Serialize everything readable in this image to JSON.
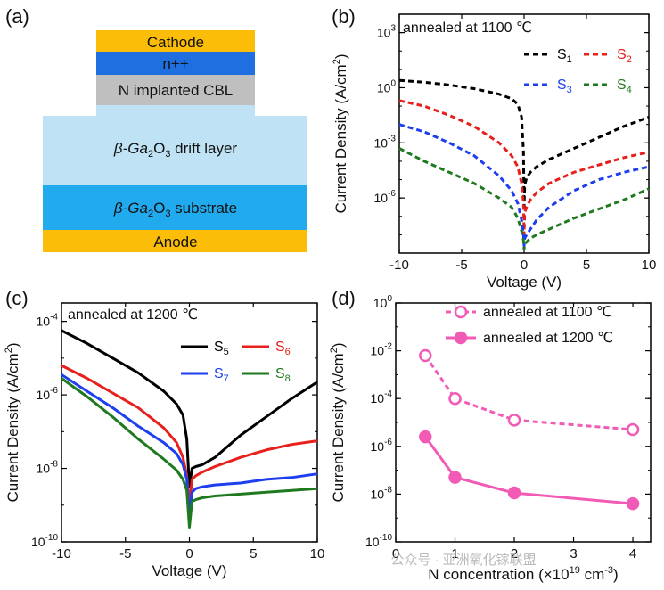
{
  "figure": {
    "panel_labels": [
      "(a)",
      "(b)",
      "(c)",
      "(d)"
    ],
    "watermark": "公众号 · 亚洲氧化镓联盟"
  },
  "device": {
    "layers": [
      {
        "label": "Cathode",
        "color": "#fbbd08"
      },
      {
        "label": "n++",
        "color": "#1f6fe0"
      },
      {
        "label": "N implanted CBL",
        "color": "#bfbfbf"
      },
      {
        "label_prefix": "β-Ga",
        "sub1": "2",
        "mid": "O",
        "sub2": "3",
        "label_suffix": " drift layer",
        "color": "#bfe3f4"
      },
      {
        "label_prefix": "β-Ga",
        "sub1": "2",
        "mid": "O",
        "sub2": "3",
        "label_suffix": " substrate",
        "color": "#22aaee"
      },
      {
        "label": "Anode",
        "color": "#fbbd08"
      }
    ]
  },
  "chart_data": [
    {
      "panel": "(b)",
      "type": "line",
      "title": "annealed at 1100 ℃",
      "xlabel": "Voltage (V)",
      "ylabel": "Current Density (A/cm²)",
      "xlim": [
        -10,
        10
      ],
      "ylim_log10": [
        -9,
        4
      ],
      "xticks": [
        -10,
        -5,
        0,
        5,
        10
      ],
      "yticks": [
        {
          "base": "10",
          "exp": "3",
          "value": 3
        },
        {
          "base": "10",
          "exp": "0",
          "value": 0
        },
        {
          "base": "10",
          "exp": "-3",
          "value": -3
        },
        {
          "base": "10",
          "exp": "-6",
          "value": -6
        }
      ],
      "line_style": "dashed",
      "series": [
        {
          "name": "S",
          "sub": "1",
          "color": "#000000",
          "x": [
            -10,
            -8,
            -6,
            -4,
            -2,
            -1,
            -0.5,
            -0.2,
            -0.05,
            0,
            0.05,
            0.2,
            0.5,
            1,
            2,
            4,
            6,
            8,
            10
          ],
          "log10_y": [
            0.4,
            0.3,
            0.15,
            -0.05,
            -0.35,
            -0.6,
            -0.9,
            -1.6,
            -3.5,
            -6.5,
            -5.3,
            -4.9,
            -4.6,
            -4.3,
            -3.9,
            -3.3,
            -2.7,
            -2.1,
            -1.6
          ]
        },
        {
          "name": "S",
          "sub": "2",
          "color": "#e8201c",
          "x": [
            -10,
            -8,
            -6,
            -4,
            -2,
            -1,
            -0.5,
            -0.2,
            -0.05,
            0,
            0.05,
            0.2,
            0.5,
            1,
            2,
            4,
            6,
            8,
            10
          ],
          "log10_y": [
            -0.7,
            -1.0,
            -1.5,
            -2.1,
            -3.0,
            -3.7,
            -4.3,
            -5.2,
            -6.3,
            -8.0,
            -6.8,
            -6.5,
            -6.1,
            -5.7,
            -5.2,
            -4.6,
            -4.2,
            -3.8,
            -3.5
          ]
        },
        {
          "name": "S",
          "sub": "3",
          "color": "#1e3ff0",
          "x": [
            -10,
            -8,
            -6,
            -4,
            -2,
            -1,
            -0.5,
            -0.2,
            -0.05,
            0,
            0.05,
            0.2,
            0.5,
            1,
            2,
            4,
            6,
            8,
            10
          ],
          "log10_y": [
            -2.0,
            -2.4,
            -3.0,
            -3.7,
            -4.8,
            -5.6,
            -6.3,
            -7.2,
            -8.0,
            -8.6,
            -8.2,
            -8.0,
            -7.7,
            -7.2,
            -6.5,
            -5.6,
            -5.0,
            -4.6,
            -4.3
          ]
        },
        {
          "name": "S",
          "sub": "4",
          "color": "#1f7a1f",
          "x": [
            -10,
            -8,
            -6,
            -4,
            -2,
            -1,
            -0.5,
            -0.2,
            -0.05,
            0,
            0.05,
            0.2,
            0.5,
            1,
            2,
            4,
            6,
            8,
            10
          ],
          "log10_y": [
            -3.3,
            -4.0,
            -4.6,
            -5.2,
            -6.0,
            -6.5,
            -7.1,
            -7.8,
            -8.3,
            -8.8,
            -8.5,
            -8.4,
            -8.2,
            -8.0,
            -7.7,
            -7.1,
            -6.6,
            -6.1,
            -5.5
          ]
        }
      ]
    },
    {
      "panel": "(c)",
      "type": "line",
      "title": "annealed at 1200 ℃",
      "xlabel": "Voltage (V)",
      "ylabel": "Current Density (A/cm²)",
      "xlim": [
        -10,
        10
      ],
      "ylim_log10": [
        -10,
        -3.5
      ],
      "xticks": [
        -10,
        -5,
        0,
        5,
        10
      ],
      "yticks": [
        {
          "base": "10",
          "exp": "-4",
          "value": -4
        },
        {
          "base": "10",
          "exp": "-6",
          "value": -6
        },
        {
          "base": "10",
          "exp": "-8",
          "value": -8
        },
        {
          "base": "10",
          "exp": "-10",
          "value": -10
        }
      ],
      "line_style": "solid",
      "series": [
        {
          "name": "S",
          "sub": "5",
          "color": "#000000",
          "x": [
            -10,
            -8,
            -6,
            -4,
            -2,
            -1,
            -0.5,
            -0.2,
            0,
            0.2,
            0.5,
            1,
            2,
            4,
            6,
            8,
            10
          ],
          "log10_y": [
            -4.25,
            -4.6,
            -5.0,
            -5.4,
            -5.9,
            -6.25,
            -6.55,
            -7.2,
            -8.5,
            -8.0,
            -7.95,
            -7.9,
            -7.7,
            -7.1,
            -6.6,
            -6.1,
            -5.65
          ]
        },
        {
          "name": "S",
          "sub": "6",
          "color": "#e8201c",
          "x": [
            -10,
            -8,
            -6,
            -4,
            -2,
            -1,
            -0.5,
            -0.2,
            0,
            0.2,
            0.5,
            1,
            2,
            4,
            6,
            8,
            10
          ],
          "log10_y": [
            -5.2,
            -5.55,
            -5.95,
            -6.35,
            -6.9,
            -7.3,
            -7.7,
            -8.2,
            -9.0,
            -8.3,
            -8.2,
            -8.1,
            -7.95,
            -7.7,
            -7.5,
            -7.35,
            -7.25
          ]
        },
        {
          "name": "S",
          "sub": "7",
          "color": "#1e3ff0",
          "x": [
            -10,
            -8,
            -6,
            -4,
            -2,
            -1,
            -0.5,
            -0.2,
            0,
            0.2,
            0.5,
            1,
            2,
            4,
            6,
            8,
            10
          ],
          "log10_y": [
            -5.45,
            -5.9,
            -6.35,
            -6.85,
            -7.3,
            -7.6,
            -7.9,
            -8.3,
            -9.3,
            -8.65,
            -8.55,
            -8.5,
            -8.45,
            -8.4,
            -8.3,
            -8.25,
            -8.15
          ]
        },
        {
          "name": "S",
          "sub": "8",
          "color": "#1f7a1f",
          "x": [
            -10,
            -8,
            -6,
            -4,
            -2,
            -1,
            -0.5,
            -0.2,
            0,
            0.2,
            0.5,
            1,
            2,
            4,
            6,
            8,
            10
          ],
          "log10_y": [
            -5.55,
            -6.05,
            -6.6,
            -7.2,
            -7.75,
            -8.05,
            -8.3,
            -8.6,
            -9.6,
            -8.9,
            -8.85,
            -8.8,
            -8.75,
            -8.7,
            -8.65,
            -8.6,
            -8.55
          ]
        }
      ]
    },
    {
      "panel": "(d)",
      "type": "scatter",
      "xlabel_pre": "N concentration (×10",
      "xlabel_sup1": "19",
      "xlabel_mid": " cm",
      "xlabel_sup2": "-3",
      "xlabel_post": ")",
      "ylabel": "Current Density (A/cm²)",
      "xlim": [
        0,
        4.3
      ],
      "ylim_log10": [
        -10,
        0
      ],
      "xticks": [
        0,
        1,
        2,
        3,
        4
      ],
      "yticks": [
        {
          "base": "10",
          "exp": "0",
          "value": 0
        },
        {
          "base": "10",
          "exp": "-2",
          "value": -2
        },
        {
          "base": "10",
          "exp": "-4",
          "value": -4
        },
        {
          "base": "10",
          "exp": "-6",
          "value": -6
        },
        {
          "base": "10",
          "exp": "-8",
          "value": -8
        },
        {
          "base": "10",
          "exp": "-10",
          "value": -10
        }
      ],
      "color": "#f25bb5",
      "series": [
        {
          "name": "annealed at 1100 ℃",
          "marker": "open",
          "line": "dashed",
          "x": [
            0.5,
            1,
            2,
            4
          ],
          "log10_y": [
            -2.2,
            -4.0,
            -4.9,
            -5.3
          ]
        },
        {
          "name": "annealed at 1200 ℃",
          "marker": "filled",
          "line": "solid",
          "x": [
            0.5,
            1,
            2,
            4
          ],
          "log10_y": [
            -5.6,
            -7.3,
            -7.95,
            -8.4
          ]
        }
      ]
    }
  ]
}
